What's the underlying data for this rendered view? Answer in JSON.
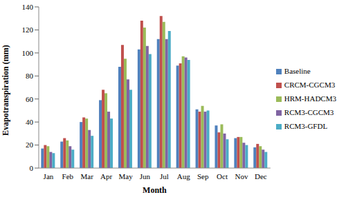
{
  "chart_data": {
    "type": "bar",
    "x_label": "Month",
    "y_label": "Evapotranspiration (mm)",
    "categories": [
      "Jan",
      "Feb",
      "Mar",
      "Apr",
      "May",
      "Jun",
      "Jul",
      "Aug",
      "Sep",
      "Oct",
      "Nov",
      "Dec"
    ],
    "series": [
      {
        "name": "Baseline",
        "color": "#4f81bd",
        "values": [
          17,
          23,
          40,
          59,
          88,
          103,
          112,
          89,
          51,
          37,
          26,
          18
        ]
      },
      {
        "name": "CRCM-CGCM3",
        "color": "#c0504d",
        "values": [
          20,
          26,
          44,
          68,
          107,
          128,
          132,
          91,
          49,
          31,
          27,
          21
        ]
      },
      {
        "name": "HRM-HADCM3",
        "color": "#9bbb59",
        "values": [
          19,
          24,
          43,
          65,
          95,
          122,
          127,
          97,
          54,
          38,
          27,
          19
        ]
      },
      {
        "name": "RCM3-CGCM3",
        "color": "#8064a2",
        "values": [
          14,
          19,
          33,
          49,
          77,
          106,
          112,
          96,
          49,
          30,
          22,
          16
        ]
      },
      {
        "name": "RCM3-GFDL",
        "color": "#4bacc6",
        "values": [
          13,
          16,
          28,
          43,
          68,
          99,
          119,
          94,
          50,
          25,
          20,
          14
        ]
      }
    ],
    "ylim": [
      0,
      140
    ],
    "yticks": [
      0,
      20,
      40,
      60,
      80,
      100,
      120,
      140
    ],
    "grid": false,
    "legend": "right"
  }
}
